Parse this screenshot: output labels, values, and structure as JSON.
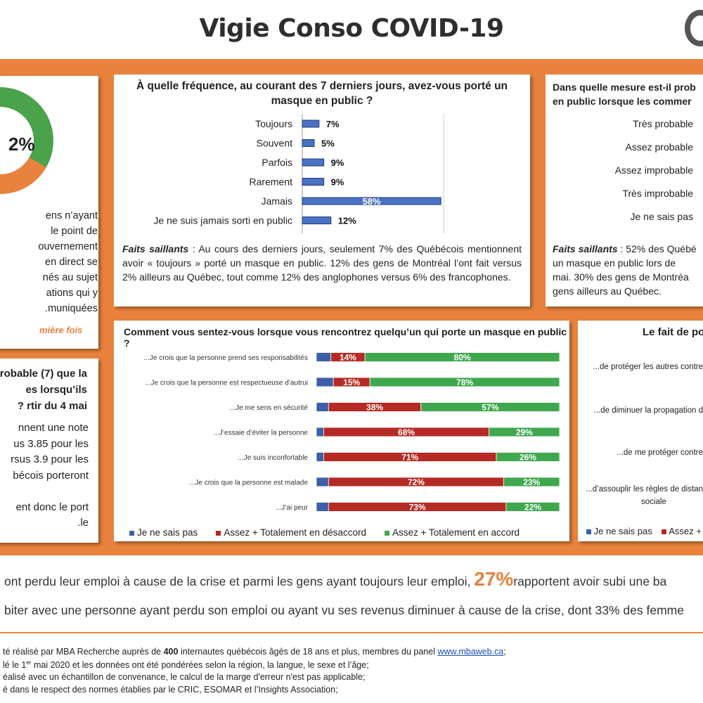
{
  "header": {
    "title": "Vigie Conso COVID-19"
  },
  "left_panel_1": {
    "donut_value": "2%",
    "text": "ens n’ayant\nle point de\nouvernement\nen direct se\nnés au sujet\nations qui y\nmuniquées.",
    "highlight": "mière fois",
    "colors": {
      "green": "#4aa24a",
      "orange": "#e8823c"
    }
  },
  "left_panel_2": {
    "question": "robable (7) que la\nes lorsqu’ils\nrtir du 4 mai ?",
    "text": "nnent une note\nus 3.85 pour les\nrsus 3.9 pour les\nbécois porteront\n\nent donc le port\nle."
  },
  "freq_chart": {
    "question": "À quelle fréquence, au courant des 7 derniers jours, avez-vous porté un masque en public ?",
    "faits_label": "Faits saillants",
    "faits_text": " : Au cours des derniers jours, seulement 7% des Québécois mentionnent avoir « toujours » porté un masque en public. 12% des gens de Montréal l’ont fait versus 2% ailleurs au Québec, tout comme 12% des anglophones versus 6% des francophones."
  },
  "prob_panel": {
    "question": "Dans quelle mesure est-il prob\nen public lorsque les commer",
    "categories": [
      "Très probable",
      "Assez probable",
      "Assez improbable",
      "Très improbable",
      "Je ne sais pas"
    ],
    "faits_label": "Faits saillants",
    "faits_text": " : 52% des Québé\nun masque en public lors de\nmai. 30% des gens de Montréa\ngens ailleurs au Québec."
  },
  "feel_chart": {
    "question": "Comment vous sentez-vous lorsque vous rencontrez quelqu’un qui porte un masque en public ?",
    "legend": [
      "Je ne sais pas",
      "Assez + Totalement en désaccord",
      "Assez + Totalement en accord"
    ]
  },
  "fait_panel": {
    "question": "Le fait de po",
    "items": [
      "...de protéger les autres contre",
      "...de diminuer la propagation d",
      "...de me protéger contre",
      "...d’assouplir les règles de distan",
      "sociale"
    ],
    "legend": [
      "Je ne sais pas",
      "Assez + T"
    ]
  },
  "bottom": {
    "line1_pre": "ont perdu leur emploi à cause de la crise et parmi les gens ayant toujours leur emploi, ",
    "line1_pct": "27%",
    "line1_post": "rapportent avoir subi une ba",
    "line2": "biter avec une personne ayant perdu son emploi ou ayant vu ses revenus diminuer à cause de la crise, dont 33% des femme"
  },
  "footer": {
    "l1_pre": "té réalisé par MBA Recherche auprès de ",
    "l1_bold": "400",
    "l1_mid": " internautes québécois âgés de 18 ans et plus, membres du panel ",
    "l1_link": "www.mbaweb.ca",
    "l1_end": ";",
    "l2_pre": "lé le 1",
    "l2_sup": "er",
    "l2_post": " mai 2020 et les données ont été pondérées selon la région, la langue, le sexe et l’âge;",
    "l3": "éalisé avec un échantillon de convenance, le calcul de la marge d'erreur n'est pas applicable;",
    "l4": "é dans le respect des normes établies par le CRIC, ESOMAR et l’Insights Association;"
  },
  "chart_data": [
    {
      "type": "bar",
      "orientation": "horizontal",
      "title": "À quelle fréquence, au courant des 7 derniers jours, avez-vous porté un masque en public ?",
      "categories": [
        "Toujours",
        "Souvent",
        "Parfois",
        "Rarement",
        "Jamais",
        "Je ne suis jamais sorti en public"
      ],
      "values": [
        7,
        5,
        9,
        9,
        58,
        12
      ],
      "labels": [
        "7%",
        "5%",
        "9%",
        "9%",
        "58%",
        "12%"
      ],
      "color": "#4a72c4"
    },
    {
      "type": "bar",
      "orientation": "horizontal",
      "stacked": true,
      "title": "Comment vous sentez-vous lorsque vous rencontrez quelqu’un qui porte un masque en public ?",
      "categories": [
        "...Je crois que la personne prend ses responsabilités",
        "...Je crois que la personne est respectueuse d’autrui",
        "...Je me sens en sécurité",
        "...J’essaie d’éviter la personne",
        "...Je suis inconfortable",
        "...Je crois que la personne est malade",
        "...J’ai peur"
      ],
      "series": [
        {
          "name": "Je ne sais pas",
          "values": [
            6,
            7,
            5,
            3,
            3,
            5,
            5
          ],
          "color": "#3d5fa8"
        },
        {
          "name": "Assez + Totalement en désaccord",
          "values": [
            14,
            15,
            38,
            68,
            71,
            72,
            73
          ],
          "labels": [
            "14%",
            "15%",
            "38%",
            "68%",
            "71%",
            "72%",
            "73%"
          ],
          "color": "#b52a24"
        },
        {
          "name": "Assez + Totalement en accord",
          "values": [
            80,
            78,
            57,
            29,
            26,
            23,
            22
          ],
          "labels": [
            "80%",
            "78%",
            "57%",
            "29%",
            "26%",
            "23%",
            "22%"
          ],
          "color": "#3fa84f"
        }
      ],
      "legend": "bottom"
    }
  ]
}
